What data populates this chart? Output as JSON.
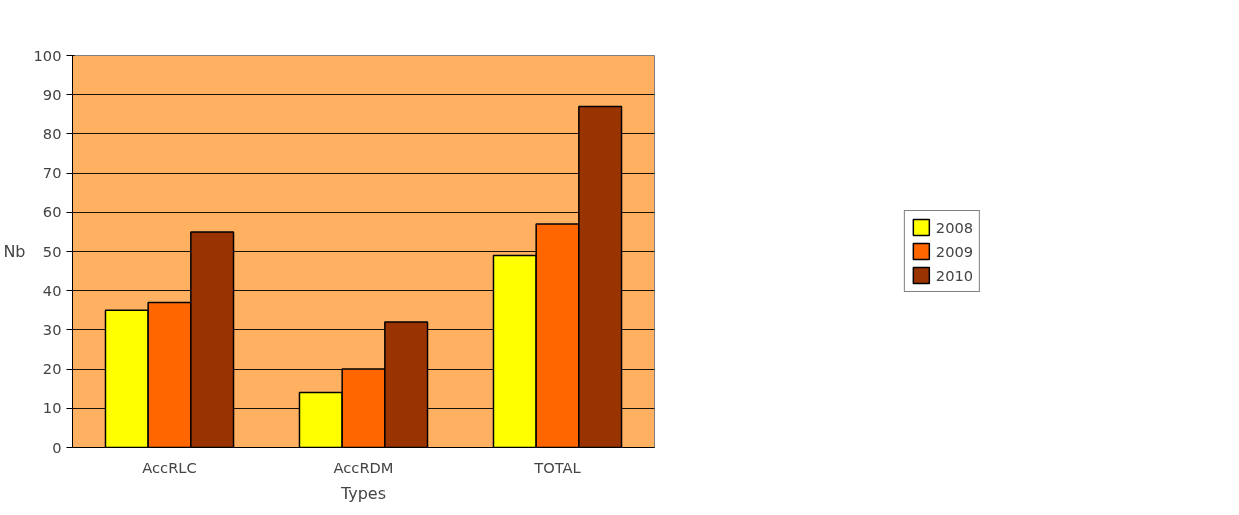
{
  "chart_data": {
    "type": "bar",
    "xlabel": "Types",
    "ylabel": "Nb",
    "categories": [
      "AccRLC",
      "AccRDM",
      "TOTAL"
    ],
    "series": [
      {
        "name": "2008",
        "color": "#ffff00",
        "values": [
          35,
          14,
          49
        ]
      },
      {
        "name": "2009",
        "color": "#ff6600",
        "values": [
          37,
          20,
          57
        ]
      },
      {
        "name": "2010",
        "color": "#993300",
        "values": [
          55,
          32,
          87
        ]
      }
    ],
    "ylim": [
      0,
      100
    ],
    "yticks": [
      0,
      10,
      20,
      30,
      40,
      50,
      60,
      70,
      80,
      90,
      100
    ],
    "grid": "y",
    "legend": "right"
  }
}
